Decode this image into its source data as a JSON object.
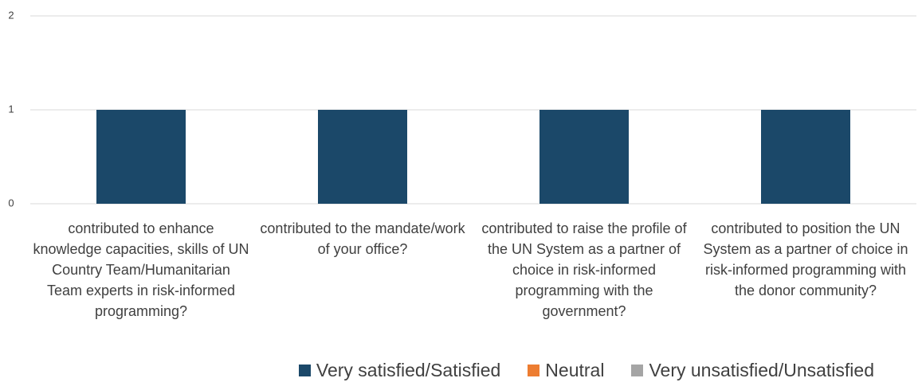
{
  "chart_data": {
    "type": "stacked_bar",
    "categories": [
      "contributed to enhance knowledge capacities, skills of UN Country Team/Humanitarian Team experts in risk-informed programming?",
      "contributed to the mandate/work of your office?",
      "contributed to raise the profile of the UN System as a partner of choice in risk-informed programming with the government?",
      "contributed to position the UN System as a partner of choice in risk-informed programming with the donor community?"
    ],
    "series": [
      {
        "name": "Very satisfied/Satisfied",
        "color": "#1b4869",
        "values": [
          1,
          1,
          1,
          1
        ]
      },
      {
        "name": "Neutral",
        "color": "#ed7d31",
        "values": [
          0,
          0,
          0,
          0
        ]
      },
      {
        "name": "Very unsatisfied/Unsatisfied",
        "color": "#a5a5a5",
        "values": [
          0,
          0,
          0,
          0
        ]
      }
    ],
    "ylim": [
      0,
      2
    ],
    "yticks": [
      0,
      1,
      2
    ],
    "grid": true,
    "legend": "bottom"
  }
}
